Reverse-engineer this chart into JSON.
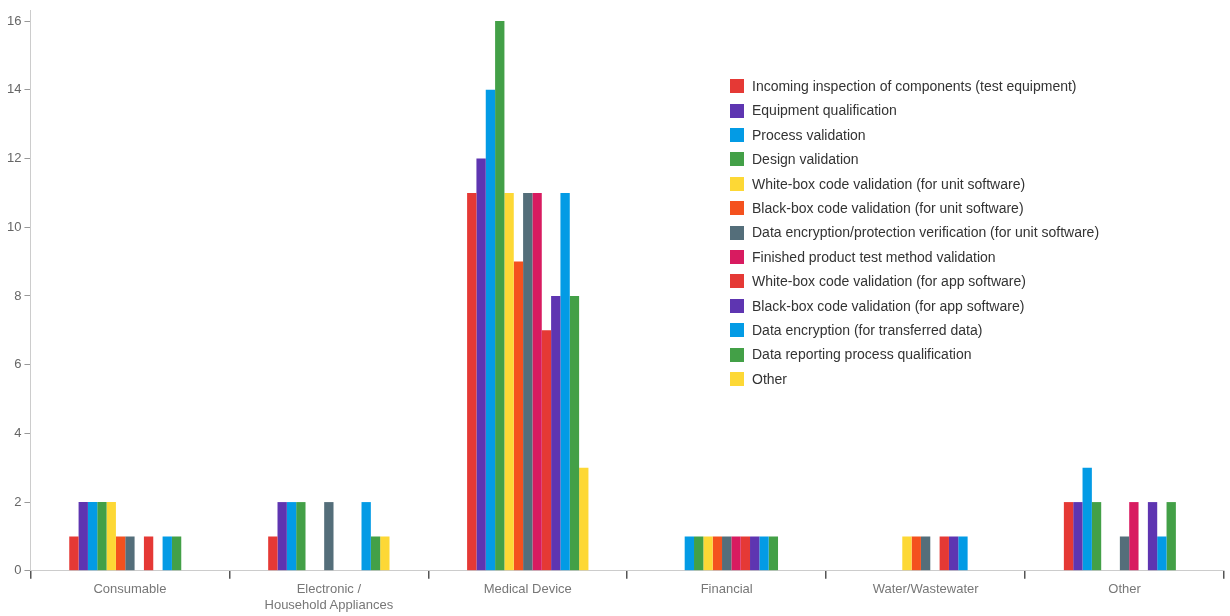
{
  "chart_data": {
    "type": "bar",
    "categories": [
      "Consumable",
      "Electronic / Household Appliances",
      "Medical Device",
      "Financial",
      "Water/Wastewater",
      "Other"
    ],
    "series": [
      {
        "name": "Incoming inspection of components (test equipment)",
        "color": "#e53935",
        "values": [
          1,
          1,
          11,
          0,
          0,
          2
        ]
      },
      {
        "name": "Equipment qualification",
        "color": "#5e35b1",
        "values": [
          2,
          2,
          12,
          0,
          0,
          2
        ]
      },
      {
        "name": "Process validation",
        "color": "#039be5",
        "values": [
          2,
          2,
          14,
          1,
          0,
          3
        ]
      },
      {
        "name": "Design validation",
        "color": "#43a047",
        "values": [
          2,
          2,
          16,
          1,
          0,
          2
        ]
      },
      {
        "name": "White-box code validation (for unit software)",
        "color": "#fdd835",
        "values": [
          2,
          0,
          11,
          1,
          1,
          0
        ]
      },
      {
        "name": "Black-box code validation (for unit software)",
        "color": "#f4511e",
        "values": [
          1,
          0,
          9,
          1,
          1,
          0
        ]
      },
      {
        "name": "Data encryption/protection verification (for unit software)",
        "color": "#546e7a",
        "values": [
          1,
          2,
          11,
          1,
          1,
          1
        ]
      },
      {
        "name": "Finished product test method validation",
        "color": "#d81b60",
        "values": [
          0,
          0,
          11,
          1,
          0,
          2
        ]
      },
      {
        "name": "White-box code validation (for app software)",
        "color": "#e53935",
        "values": [
          1,
          0,
          7,
          1,
          1,
          0
        ]
      },
      {
        "name": "Black-box code validation (for app software)",
        "color": "#5e35b1",
        "values": [
          0,
          0,
          8,
          1,
          1,
          2
        ]
      },
      {
        "name": "Data encryption (for transferred data)",
        "color": "#039be5",
        "values": [
          1,
          2,
          11,
          1,
          1,
          1
        ]
      },
      {
        "name": "Data reporting process qualification",
        "color": "#43a047",
        "values": [
          1,
          1,
          8,
          1,
          0,
          2
        ]
      },
      {
        "name": "Other",
        "color": "#fdd835",
        "values": [
          0,
          1,
          3,
          0,
          0,
          0
        ]
      }
    ],
    "ylim": [
      0,
      16.3
    ],
    "yticks": [
      0,
      2,
      4,
      6,
      8,
      10,
      12,
      14,
      16
    ],
    "grid": false,
    "legend": "top right"
  }
}
